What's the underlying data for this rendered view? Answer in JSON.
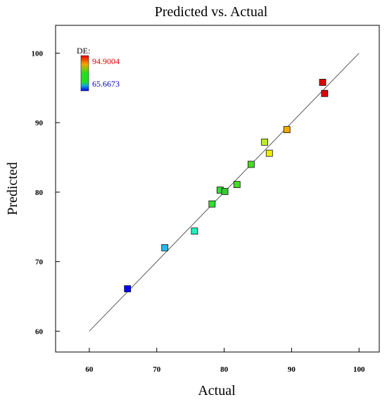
{
  "chart_data": {
    "type": "scatter",
    "title": "Predicted vs. Actual",
    "xlabel": "Actual",
    "ylabel": "Predicted",
    "xlim": [
      55,
      103
    ],
    "ylim": [
      57,
      104
    ],
    "xticks": [
      60,
      70,
      80,
      90,
      100
    ],
    "yticks": [
      60,
      70,
      80,
      90,
      100
    ],
    "reference_line": {
      "from": [
        60,
        60
      ],
      "to": [
        100,
        100
      ]
    },
    "legend": {
      "title": "DE:",
      "max_label": "94.9004",
      "min_label": "65.6673",
      "max_color": "#dd0000",
      "min_color": "#0000cc"
    },
    "points": [
      {
        "x": 65.6673,
        "y": 66.1,
        "color": "#0000ff"
      },
      {
        "x": 71.2,
        "y": 72.0,
        "color": "#22bbee"
      },
      {
        "x": 75.6,
        "y": 74.4,
        "color": "#22eebb"
      },
      {
        "x": 78.2,
        "y": 78.3,
        "color": "#33dd33"
      },
      {
        "x": 79.4,
        "y": 80.3,
        "color": "#33dd33"
      },
      {
        "x": 80.1,
        "y": 80.1,
        "color": "#33cc33"
      },
      {
        "x": 81.9,
        "y": 81.1,
        "color": "#44dd22"
      },
      {
        "x": 84.0,
        "y": 84.0,
        "color": "#44dd22"
      },
      {
        "x": 86.0,
        "y": 87.2,
        "color": "#bbee22"
      },
      {
        "x": 86.7,
        "y": 85.6,
        "color": "#eeee00"
      },
      {
        "x": 89.3,
        "y": 89.0,
        "color": "#eeaa00"
      },
      {
        "x": 94.6,
        "y": 95.8,
        "color": "#dd0000"
      },
      {
        "x": 94.9004,
        "y": 94.2,
        "color": "#dd0000"
      }
    ]
  }
}
